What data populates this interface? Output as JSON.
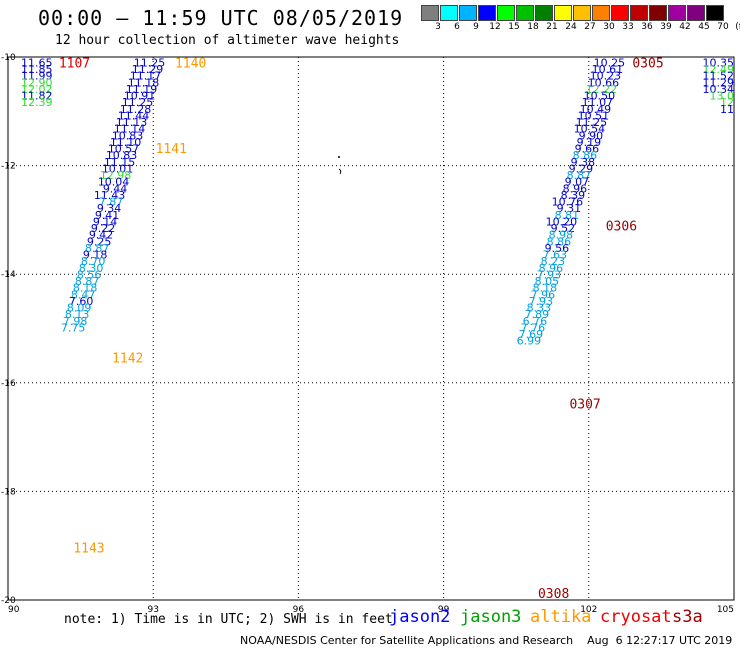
{
  "title": "00:00 – 11:59 UTC 08/05/2019",
  "subtitle": "12 hour collection of altimeter wave heights",
  "color_scale": {
    "labels": [
      "3",
      "6",
      "9",
      "12",
      "15",
      "18",
      "21",
      "24",
      "27",
      "30",
      "33",
      "36",
      "39",
      "42",
      "45",
      "70",
      "(ft)"
    ],
    "colors": [
      "#7f7f7f",
      "#00ffff",
      "#00b4ff",
      "#0000ff",
      "#00ff00",
      "#00c000",
      "#008000",
      "#ffff00",
      "#ffc000",
      "#ff8000",
      "#ff0000",
      "#c00000",
      "#800000",
      "#a000a0",
      "#800080",
      "#000000"
    ]
  },
  "axes": {
    "x_ticks": [
      "90",
      "93",
      "96",
      "99",
      "102",
      "105"
    ],
    "y_ticks": [
      "-10",
      "-12",
      "-14",
      "-16",
      "-18",
      "-20"
    ],
    "x_range": [
      90,
      105
    ],
    "y_range": [
      -20,
      -10
    ]
  },
  "track_colors": {
    "blue": "#0000cc",
    "cyan": "#00a0e0",
    "green": "#33dd33",
    "orange": "#ff9900",
    "darkred": "#990000",
    "red": "#dd0000"
  },
  "time_labels": [
    {
      "text": "1107",
      "lon": 91.05,
      "lat": -10.1,
      "color": "red"
    },
    {
      "text": "1140",
      "lon": 93.45,
      "lat": -10.1,
      "color": "orange"
    },
    {
      "text": "1141",
      "lon": 93.05,
      "lat": -11.68,
      "color": "orange"
    },
    {
      "text": "1142",
      "lon": 92.15,
      "lat": -15.53,
      "color": "orange"
    },
    {
      "text": "1143",
      "lon": 91.35,
      "lat": -19.03,
      "color": "orange"
    },
    {
      "text": "0305",
      "lon": 102.9,
      "lat": -10.1,
      "color": "darkred"
    },
    {
      "text": "0306",
      "lon": 102.35,
      "lat": -13.1,
      "color": "darkred"
    },
    {
      "text": "0307",
      "lon": 101.6,
      "lat": -16.38,
      "color": "darkred"
    },
    {
      "text": "0308",
      "lon": 100.95,
      "lat": -19.87,
      "color": "darkred"
    }
  ],
  "tracks": [
    {
      "name": "t1107",
      "right_lon": 90.92,
      "lat0": -10.1,
      "dlat": -0.122,
      "dlon": 0.0,
      "values": [
        "11.65",
        "11.85",
        "11.99",
        "12.90",
        "12.02",
        "11.82",
        "12.39"
      ],
      "colors": [
        "blue",
        "blue",
        "blue",
        "green",
        "green",
        "blue",
        "green"
      ]
    },
    {
      "name": "t1140",
      "right_lon": 93.25,
      "lat0": -10.1,
      "dlat": -0.122,
      "dlon": -0.0413,
      "values": [
        "11.25",
        "11.29",
        "11.17",
        "11.18",
        "11.19",
        "10.91",
        "11.25",
        "11.28",
        "11.44",
        "11.13",
        "11.14",
        "10.83",
        "11.10",
        "10.57",
        "10.83",
        "11.15",
        "10.01",
        "12.98",
        "10.04",
        "9.44",
        "11.43",
        "7.87",
        "9.34",
        "9.41",
        "9.14",
        "9.22",
        "9.42",
        "9.25",
        "8.87",
        "9.18",
        "8.70",
        "8.30",
        "8.56",
        "8.87",
        "8.18",
        "8.47",
        "7.60",
        "8.09",
        "8.13",
        "7.98",
        "7.75"
      ],
      "colors": [
        "blue",
        "blue",
        "blue",
        "blue",
        "blue",
        "blue",
        "blue",
        "blue",
        "blue",
        "blue",
        "blue",
        "blue",
        "blue",
        "blue",
        "blue",
        "blue",
        "blue",
        "green",
        "blue",
        "blue",
        "blue",
        "cyan",
        "blue",
        "blue",
        "blue",
        "blue",
        "blue",
        "blue",
        "cyan",
        "blue",
        "cyan",
        "cyan",
        "cyan",
        "cyan",
        "cyan",
        "cyan",
        "blue",
        "cyan",
        "cyan",
        "cyan",
        "cyan"
      ]
    },
    {
      "name": "t0305",
      "right_lon": 102.75,
      "lat0": -10.1,
      "dlat": -0.122,
      "dlon": -0.0413,
      "values": [
        "10.25",
        "10.61",
        "10.23",
        "10.66",
        "12.22",
        "10.50",
        "11.07",
        "10.49",
        "10.51",
        "11.25",
        "10.54",
        "9.90",
        "9.19",
        "9.66",
        "8.86",
        "9.38",
        "9.29",
        "8.87",
        "9.07",
        "8.96",
        "8.39",
        "10.76",
        "9.31",
        "8.81",
        "10.20",
        "9.52",
        "8.98",
        "8.86",
        "9.56",
        "7.63",
        "8.23",
        "8.96",
        "7.93",
        "8.05",
        "8.18",
        "7.96",
        "7.93",
        "8.33",
        "7.89",
        "6.76",
        "7.76",
        "7.69",
        "6.99"
      ],
      "colors": [
        "blue",
        "blue",
        "blue",
        "blue",
        "green",
        "blue",
        "blue",
        "blue",
        "blue",
        "blue",
        "blue",
        "blue",
        "blue",
        "blue",
        "cyan",
        "blue",
        "blue",
        "cyan",
        "blue",
        "blue",
        "blue",
        "blue",
        "blue",
        "cyan",
        "blue",
        "blue",
        "cyan",
        "cyan",
        "blue",
        "cyan",
        "cyan",
        "cyan",
        "cyan",
        "cyan",
        "cyan",
        "cyan",
        "cyan",
        "cyan",
        "cyan",
        "cyan",
        "cyan",
        "cyan",
        "cyan"
      ]
    },
    {
      "name": "tright",
      "right_lon": 105.0,
      "lat0": -10.1,
      "dlat": -0.122,
      "dlon": 0.0,
      "values": [
        "10.35",
        "12.49",
        "11.52",
        "11.29",
        "10.34",
        "13.0",
        "12",
        "11"
      ],
      "colors": [
        "blue",
        "green",
        "blue",
        "blue",
        "blue",
        "green",
        "green",
        "blue"
      ]
    }
  ],
  "note": "note: 1) Time is in UTC; 2) SWH is in feet",
  "satellites": [
    {
      "label": "jason2",
      "color": "#0000ff"
    },
    {
      "label": "jason3",
      "color": "#00a000"
    },
    {
      "label": "altika",
      "color": "#ff9900"
    },
    {
      "label": "cryosat",
      "color": "#ee0000"
    },
    {
      "label": "s3a",
      "color": "#990000"
    }
  ],
  "footer": "NOAA/NESDIS Center for Satellite Applications and Research    Aug  6 12:27:17 UTC 2019"
}
